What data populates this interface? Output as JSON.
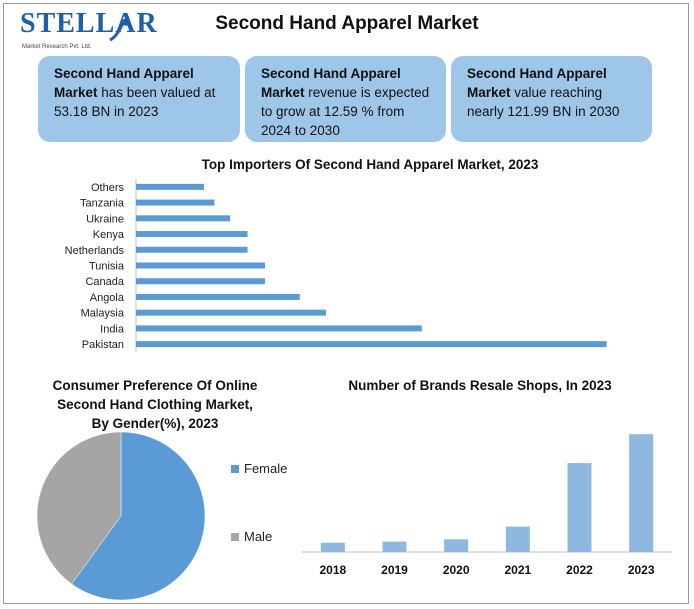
{
  "header": {
    "logo_text": "STELLAR",
    "logo_subtitle": "Market Research Pvt. Ltd.",
    "title": "Second Hand Apparel Market"
  },
  "cards": [
    {
      "bold": "Second Hand Apparel Market",
      "rest": " has been valued at 53.18 BN in 2023"
    },
    {
      "bold": "Second Hand Apparel Market",
      "rest": " revenue is expected to grow at 12.59 % from 2024 to 2030"
    },
    {
      "bold": "Second Hand Apparel Market",
      "rest": " value reaching nearly 121.99 BN in 2030"
    }
  ],
  "colors": {
    "bar": "#5b9bd5",
    "brand_bar": "#8fb8e0",
    "pie_female": "#5b9bd5",
    "pie_male": "#a5a5a5",
    "card": "#9ec6e9"
  },
  "chart_data": [
    {
      "type": "bar",
      "orientation": "horizontal",
      "title": "Top Importers Of Second Hand Apparel Market, 2023",
      "categories": [
        "Others",
        "Tanzania",
        "Ukraine",
        "Kenya",
        "Netherlands",
        "Tunisia",
        "Canada",
        "Angola",
        "Malaysia",
        "India",
        "Pakistan"
      ],
      "values": [
        39,
        45,
        54,
        64,
        64,
        74,
        74,
        94,
        109,
        164,
        270
      ],
      "xlim": [
        0,
        280
      ],
      "grid": false
    },
    {
      "type": "pie",
      "title": "Consumer Preference Of Online Second Hand Clothing Market, By Gender(%), 2023",
      "labels": [
        "Female",
        "Male"
      ],
      "values": [
        60,
        40
      ],
      "legend": "right"
    },
    {
      "type": "bar",
      "title": "Number of Brands Resale Shops, In 2023",
      "categories": [
        "2018",
        "2019",
        "2020",
        "2021",
        "2022",
        "2023"
      ],
      "values": [
        8,
        9,
        11,
        22,
        77,
        102
      ],
      "ylim": [
        0,
        110
      ],
      "grid": false
    }
  ]
}
